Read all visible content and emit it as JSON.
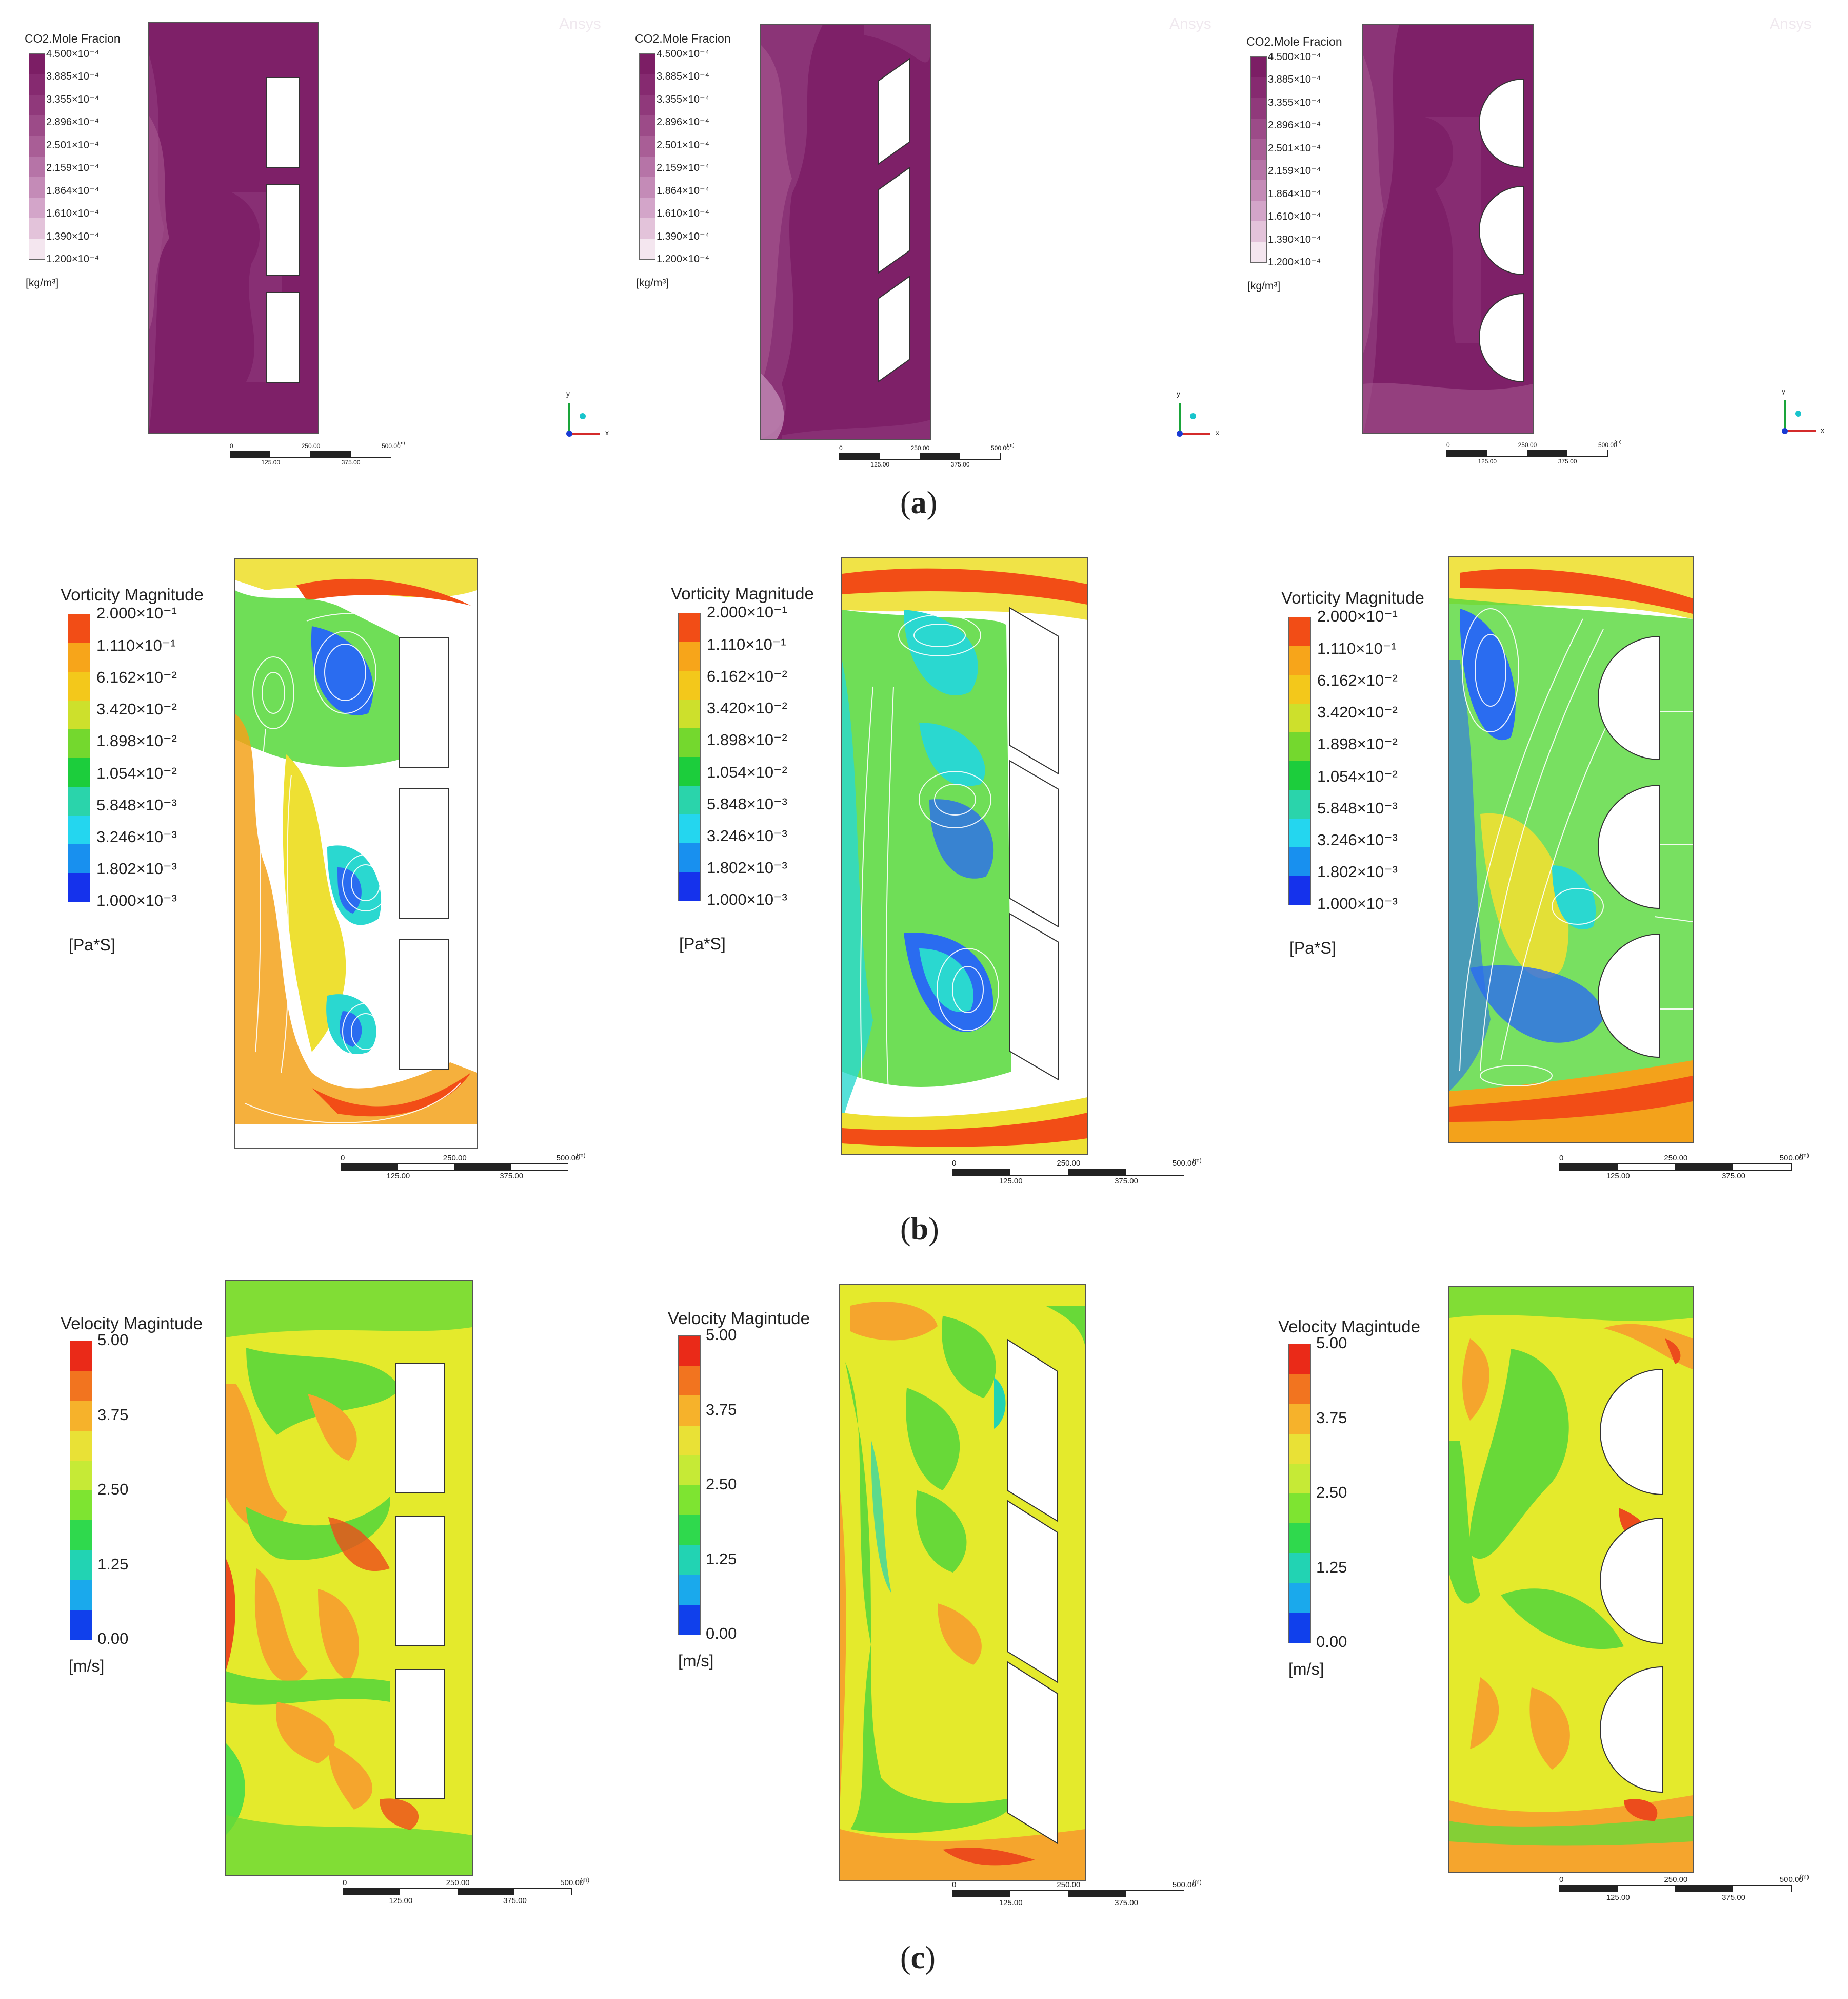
{
  "rows": {
    "a": {
      "caption_open": "(",
      "caption_letter": "a",
      "caption_close": ")",
      "legend_title": "CO2.Mole Fracion",
      "unit": "[kg/m³]",
      "ticks": [
        "4.500×10⁻⁴",
        "3.885×10⁻⁴",
        "3.355×10⁻⁴",
        "2.896×10⁻⁴",
        "2.501×10⁻⁴",
        "2.159×10⁻⁴",
        "1.864×10⁻⁴",
        "1.610×10⁻⁴",
        "1.390×10⁻⁴",
        "1.200×10⁻⁴"
      ],
      "colors": [
        "#7c1e65",
        "#862a70",
        "#90397b",
        "#9c4b88",
        "#a95e96",
        "#b674a7",
        "#c48bb7",
        "#d3a5c9",
        "#e3c3da",
        "#f4e6ef"
      ],
      "watermark": "Ansys",
      "triad_labels": {
        "x": "x",
        "y": "y"
      }
    },
    "b": {
      "caption_open": "(",
      "caption_letter": "b",
      "caption_close": ")",
      "legend_title": "Vorticity Magnitude",
      "unit": "[Pa*S]",
      "ticks": [
        "2.000×10⁻¹",
        "1.110×10⁻¹",
        "6.162×10⁻²",
        "3.420×10⁻²",
        "1.898×10⁻²",
        "1.054×10⁻²",
        "5.848×10⁻³",
        "3.246×10⁻³",
        "1.802×10⁻³",
        "1.000×10⁻³"
      ],
      "colors": [
        "#f24d16",
        "#f7a51a",
        "#f3c81b",
        "#cde02c",
        "#74d82e",
        "#1ccd3c",
        "#2ad4ab",
        "#24d6ef",
        "#1890ef",
        "#1532ec"
      ]
    },
    "c": {
      "caption_open": "(",
      "caption_letter": "c",
      "caption_close": ")",
      "legend_title": "Velocity Magintude",
      "unit": "[m/s]",
      "ticks": [
        "5.00",
        "3.75",
        "2.50",
        "1.25",
        "0.00"
      ],
      "colors": [
        "#ea2a18",
        "#f2741f",
        "#f6b22b",
        "#e9e136",
        "#c6ea36",
        "#7ee431",
        "#2fd94d",
        "#22d3b3",
        "#1aa9ec",
        "#1040ec"
      ]
    }
  },
  "scale_bar": {
    "zero": "0",
    "mid": "250.00",
    "end": "500.00",
    "unit": "(m)",
    "q1": "125.00",
    "q3": "375.00"
  },
  "field_colors": {
    "co2_dark": "#7e2068",
    "co2_mid": "#8d3679",
    "co2_light": "#a6598f",
    "vort_red": "#f24d16",
    "vort_orange": "#f3a21b",
    "vort_yellow": "#eee033",
    "vort_green": "#56d83a",
    "vort_cyan": "#2ad8d0",
    "vort_blue": "#2a6cf0",
    "vel_yellow": "#e4ea2c",
    "vel_orange": "#f5a52d",
    "vel_green": "#68d938",
    "vel_red": "#ec4c1c"
  },
  "layouts": [
    "rectangular-buildings",
    "parallelogram-buildings",
    "semicircular-buildings"
  ]
}
